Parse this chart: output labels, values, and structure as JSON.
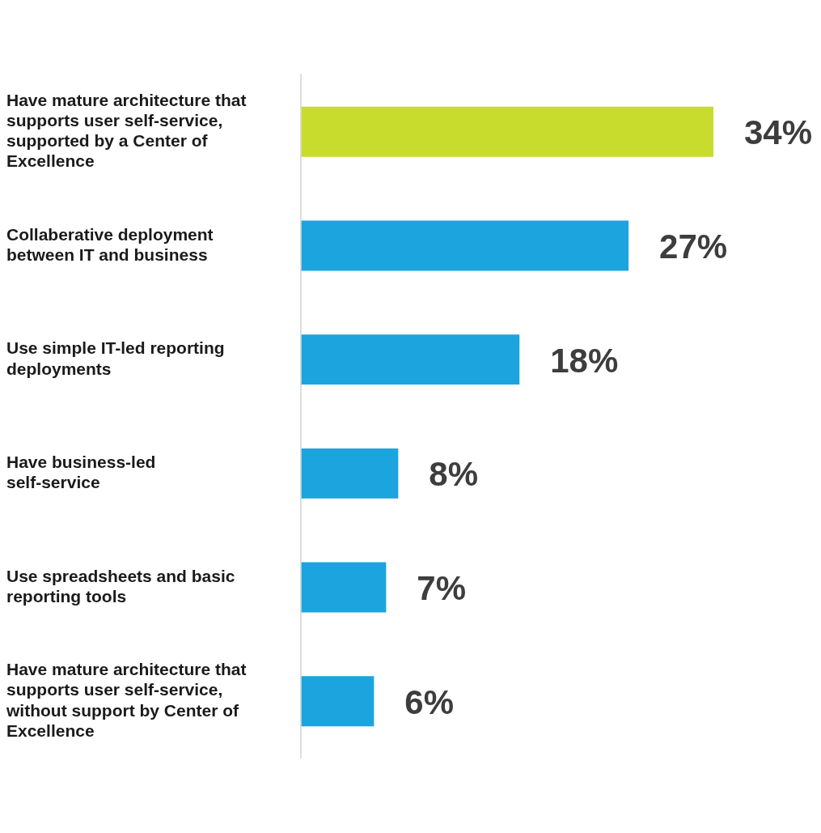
{
  "chart_data": {
    "type": "bar",
    "orientation": "horizontal",
    "categories": [
      "Have mature architecture that supports user self-service, supported by a Center of Excellence",
      "Collaberative deployment between IT and business",
      "Use simple IT-led reporting deployments",
      "Have business-led self-service",
      "Use spreadsheets and basic reporting tools",
      "Have mature architecture that supports user self-service, without support by Center of Excellence"
    ],
    "values": [
      34,
      27,
      18,
      8,
      7,
      6
    ],
    "colors": [
      "#c8dc2e",
      "#1ba4de",
      "#1ba4de",
      "#1ba4de",
      "#1ba4de",
      "#1ba4de"
    ],
    "value_labels": [
      "34%",
      "27%",
      "18%",
      "8%",
      "7%",
      "6%"
    ],
    "grid": false,
    "legend": false
  }
}
